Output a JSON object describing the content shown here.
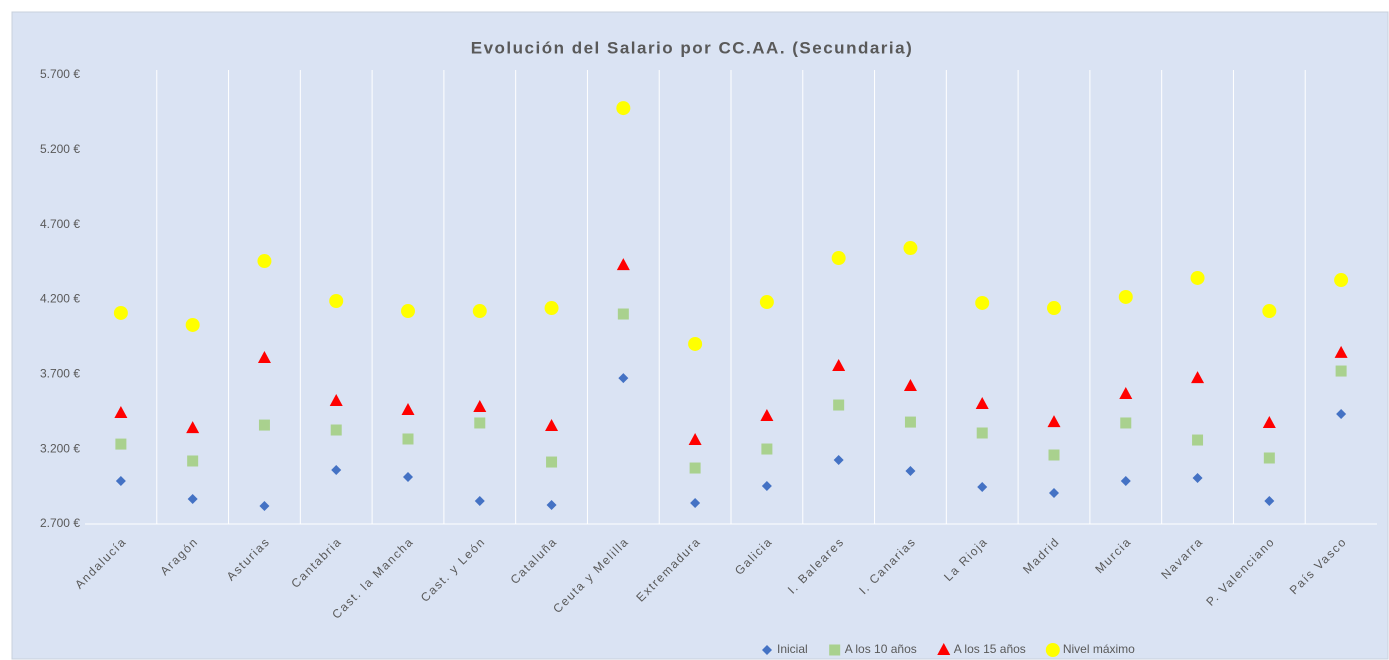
{
  "chart_data": {
    "type": "scatter",
    "title": "Evolución del Salario por CC.AA. (Secundaria)",
    "categories": [
      "Andalucía",
      "Aragón",
      "Asturias",
      "Cantabria",
      "Cast. la Mancha",
      "Cast. y León",
      "Cataluña",
      "Ceuta y Melilla",
      "Extremadura",
      "Galicia",
      "I. Baleares",
      "I. Canarias",
      "La Rioja",
      "Madrid",
      "Murcia",
      "Navarra",
      "P. Valenciano",
      "País Vasco"
    ],
    "series": [
      {
        "name": "Inicial",
        "color": "#4472c4",
        "marker": "diamond",
        "values": [
          2987,
          2867,
          2820,
          3061,
          3014,
          2854,
          2827,
          3675,
          2840,
          2954,
          3128,
          3054,
          2947,
          2907,
          2987,
          3007,
          2854,
          3435
        ]
      },
      {
        "name": "A los 10 años",
        "color": "#a9d18e",
        "marker": "square",
        "values": [
          3234,
          3121,
          3361,
          3328,
          3268,
          3375,
          3114,
          4103,
          3074,
          3201,
          3495,
          3381,
          3308,
          3161,
          3375,
          3261,
          3141,
          3722
        ]
      },
      {
        "name": "A los 15 años",
        "color": "#ff0000",
        "marker": "triangle",
        "values": [
          3442,
          3341,
          3809,
          3522,
          3462,
          3482,
          3355,
          4430,
          3261,
          3422,
          3756,
          3622,
          3502,
          3381,
          3569,
          3675,
          3375,
          3843
        ]
      },
      {
        "name": "Nivel máximo",
        "color": "#ffff00",
        "marker": "circle",
        "values": [
          4110,
          4030,
          4457,
          4190,
          4123,
          4123,
          4143,
          5479,
          3903,
          4183,
          4477,
          4544,
          4177,
          4143,
          4217,
          4344,
          4123,
          4330
        ]
      }
    ],
    "ylim": [
      2700,
      5700
    ],
    "yticks": [
      {
        "value": 2700,
        "label": "2.700 €"
      },
      {
        "value": 3200,
        "label": "3.200 €"
      },
      {
        "value": 3700,
        "label": "3.700 €"
      },
      {
        "value": 4200,
        "label": "4.200 €"
      },
      {
        "value": 4700,
        "label": "4.700 €"
      },
      {
        "value": 5200,
        "label": "5.200 €"
      },
      {
        "value": 5700,
        "label": "5.700 €"
      }
    ],
    "legend": "bottom"
  }
}
